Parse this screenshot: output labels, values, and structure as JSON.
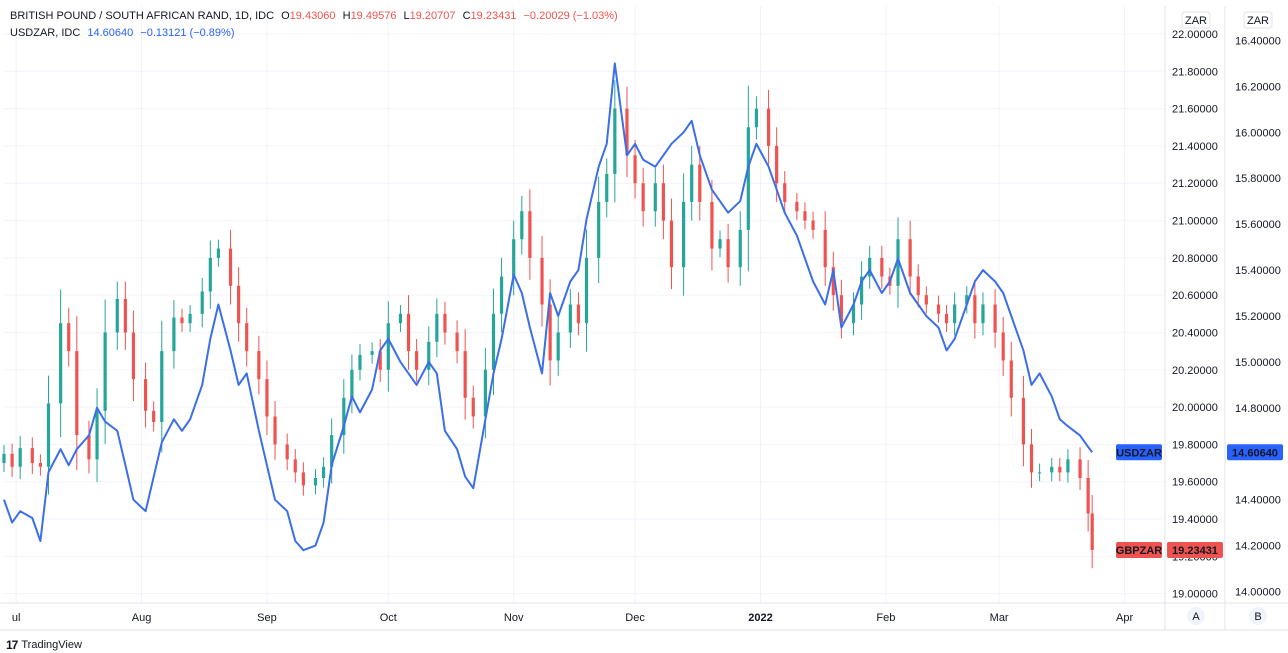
{
  "header": {
    "gbp": {
      "name": "BRITISH POUND / SOUTH AFRICAN RAND, 1D, IDC",
      "o_label": "O",
      "o": "19.43060",
      "h_label": "H",
      "h": "19.49576",
      "l_label": "L",
      "l": "19.20707",
      "c_label": "C",
      "c": "19.23431",
      "change": "−0.20029 (−1.03%)"
    },
    "usd": {
      "name": "USDZAR, IDC",
      "price": "14.60640",
      "change": "−0.13121 (−0.89%)"
    }
  },
  "footer": {
    "brand": "TradingView",
    "brand_icon": "tv-logo-icon"
  },
  "scale_buttons": {
    "left": "A",
    "right": "B"
  },
  "colors": {
    "up": "#26a69a",
    "down": "#ef5350",
    "line": "#3b6ee8",
    "grid": "#f0f3fa",
    "axis_border": "#e0e3eb",
    "text": "#131722"
  },
  "chart_data": {
    "type": "candlestick+line",
    "x_axis": {
      "ticks": [
        {
          "label": "ul",
          "date": "2021-07-01"
        },
        {
          "label": "Aug",
          "date": "2021-08-01"
        },
        {
          "label": "Sep",
          "date": "2021-09-01"
        },
        {
          "label": "Oct",
          "date": "2021-10-01"
        },
        {
          "label": "Nov",
          "date": "2021-11-01"
        },
        {
          "label": "Dec",
          "date": "2021-12-01"
        },
        {
          "label": "2022",
          "date": "2022-01-01"
        },
        {
          "label": "Feb",
          "date": "2022-02-01"
        },
        {
          "label": "Mar",
          "date": "2022-03-01"
        },
        {
          "label": "Apr",
          "date": "2022-04-01"
        }
      ],
      "start_date": "2021-06-28",
      "end_date": "2022-04-11"
    },
    "left_axis": {
      "unit": "ZAR",
      "range": [
        18.95,
        22.15
      ],
      "ticks": [
        "19.00000",
        "19.20000",
        "19.40000",
        "19.60000",
        "19.80000",
        "20.00000",
        "20.20000",
        "20.40000",
        "20.60000",
        "20.80000",
        "21.00000",
        "21.20000",
        "21.40000",
        "21.60000",
        "21.80000",
        "22.00000"
      ]
    },
    "right_axis": {
      "unit": "ZAR",
      "range": [
        13.95,
        16.55
      ],
      "ticks": [
        "14.00000",
        "14.20000",
        "14.40000",
        "14.60000",
        "14.80000",
        "15.00000",
        "15.20000",
        "15.40000",
        "15.60000",
        "15.80000",
        "16.00000",
        "16.20000",
        "16.40000"
      ]
    },
    "series": [
      {
        "name": "GBPZAR",
        "type": "candlestick",
        "axis": "left",
        "last_value": "19.23431",
        "closes": [
          [
            "2021-06-28",
            19.75
          ],
          [
            "2021-06-30",
            19.68
          ],
          [
            "2021-07-02",
            19.78
          ],
          [
            "2021-07-05",
            19.7
          ],
          [
            "2021-07-07",
            19.68
          ],
          [
            "2021-07-09",
            20.02
          ],
          [
            "2021-07-12",
            20.45
          ],
          [
            "2021-07-14",
            20.3
          ],
          [
            "2021-07-16",
            19.85
          ],
          [
            "2021-07-19",
            19.72
          ],
          [
            "2021-07-21",
            19.98
          ],
          [
            "2021-07-23",
            20.4
          ],
          [
            "2021-07-26",
            20.58
          ],
          [
            "2021-07-28",
            20.4
          ],
          [
            "2021-07-30",
            20.15
          ],
          [
            "2021-08-02",
            19.98
          ],
          [
            "2021-08-04",
            19.92
          ],
          [
            "2021-08-06",
            20.3
          ],
          [
            "2021-08-09",
            20.48
          ],
          [
            "2021-08-11",
            20.45
          ],
          [
            "2021-08-13",
            20.5
          ],
          [
            "2021-08-16",
            20.62
          ],
          [
            "2021-08-18",
            20.8
          ],
          [
            "2021-08-20",
            20.85
          ],
          [
            "2021-08-23",
            20.65
          ],
          [
            "2021-08-25",
            20.45
          ],
          [
            "2021-08-27",
            20.3
          ],
          [
            "2021-08-30",
            20.15
          ],
          [
            "2021-09-01",
            19.95
          ],
          [
            "2021-09-03",
            19.8
          ],
          [
            "2021-09-06",
            19.72
          ],
          [
            "2021-09-08",
            19.65
          ],
          [
            "2021-09-10",
            19.58
          ],
          [
            "2021-09-13",
            19.62
          ],
          [
            "2021-09-15",
            19.68
          ],
          [
            "2021-09-17",
            19.85
          ],
          [
            "2021-09-20",
            20.05
          ],
          [
            "2021-09-22",
            20.2
          ],
          [
            "2021-09-24",
            20.28
          ],
          [
            "2021-09-27",
            20.3
          ],
          [
            "2021-09-29",
            20.2
          ],
          [
            "2021-10-01",
            20.45
          ],
          [
            "2021-10-04",
            20.5
          ],
          [
            "2021-10-06",
            20.3
          ],
          [
            "2021-10-08",
            20.2
          ],
          [
            "2021-10-11",
            20.35
          ],
          [
            "2021-10-13",
            20.5
          ],
          [
            "2021-10-15",
            20.4
          ],
          [
            "2021-10-18",
            20.3
          ],
          [
            "2021-10-20",
            20.05
          ],
          [
            "2021-10-22",
            19.95
          ],
          [
            "2021-10-25",
            20.2
          ],
          [
            "2021-10-27",
            20.5
          ],
          [
            "2021-10-29",
            20.7
          ],
          [
            "2021-11-01",
            20.9
          ],
          [
            "2021-11-03",
            21.05
          ],
          [
            "2021-11-05",
            20.8
          ],
          [
            "2021-11-08",
            20.55
          ],
          [
            "2021-11-10",
            20.25
          ],
          [
            "2021-11-12",
            20.4
          ],
          [
            "2021-11-15",
            20.55
          ],
          [
            "2021-11-17",
            20.45
          ],
          [
            "2021-11-19",
            20.8
          ],
          [
            "2021-11-22",
            21.1
          ],
          [
            "2021-11-24",
            21.25
          ],
          [
            "2021-11-26",
            21.6
          ],
          [
            "2021-11-29",
            21.35
          ],
          [
            "2021-12-01",
            21.2
          ],
          [
            "2021-12-03",
            21.05
          ],
          [
            "2021-12-06",
            21.2
          ],
          [
            "2021-12-08",
            21.0
          ],
          [
            "2021-12-10",
            20.75
          ],
          [
            "2021-12-13",
            21.1
          ],
          [
            "2021-12-15",
            21.3
          ],
          [
            "2021-12-17",
            21.1
          ],
          [
            "2021-12-20",
            20.85
          ],
          [
            "2021-12-22",
            20.9
          ],
          [
            "2021-12-24",
            20.75
          ],
          [
            "2021-12-27",
            20.95
          ],
          [
            "2021-12-29",
            21.5
          ],
          [
            "2021-12-31",
            21.6
          ],
          [
            "2022-01-03",
            21.4
          ],
          [
            "2022-01-05",
            21.2
          ],
          [
            "2022-01-07",
            21.1
          ],
          [
            "2022-01-10",
            21.05
          ],
          [
            "2022-01-12",
            21.0
          ],
          [
            "2022-01-14",
            20.95
          ],
          [
            "2022-01-17",
            20.75
          ],
          [
            "2022-01-19",
            20.6
          ],
          [
            "2022-01-21",
            20.45
          ],
          [
            "2022-01-24",
            20.55
          ],
          [
            "2022-01-26",
            20.7
          ],
          [
            "2022-01-28",
            20.8
          ],
          [
            "2022-01-31",
            20.7
          ],
          [
            "2022-02-02",
            20.65
          ],
          [
            "2022-02-04",
            20.9
          ],
          [
            "2022-02-07",
            20.7
          ],
          [
            "2022-02-09",
            20.6
          ],
          [
            "2022-02-11",
            20.55
          ],
          [
            "2022-02-14",
            20.5
          ],
          [
            "2022-02-16",
            20.45
          ],
          [
            "2022-02-18",
            20.55
          ],
          [
            "2022-02-21",
            20.6
          ],
          [
            "2022-02-23",
            20.45
          ],
          [
            "2022-02-25",
            20.55
          ],
          [
            "2022-02-28",
            20.4
          ],
          [
            "2022-03-02",
            20.25
          ],
          [
            "2022-03-04",
            20.05
          ],
          [
            "2022-03-07",
            19.8
          ],
          [
            "2022-03-09",
            19.65
          ],
          [
            "2022-03-11",
            19.65
          ],
          [
            "2022-03-14",
            19.68
          ],
          [
            "2022-03-16",
            19.65
          ],
          [
            "2022-03-18",
            19.72
          ],
          [
            "2022-03-21",
            19.62
          ],
          [
            "2022-03-23",
            19.43
          ],
          [
            "2022-03-24",
            19.23431
          ]
        ]
      },
      {
        "name": "USDZAR",
        "type": "line",
        "axis": "right",
        "last_value": "14.60640",
        "values": [
          [
            "2021-06-28",
            14.4
          ],
          [
            "2021-06-30",
            14.3
          ],
          [
            "2021-07-02",
            14.35
          ],
          [
            "2021-07-05",
            14.32
          ],
          [
            "2021-07-07",
            14.22
          ],
          [
            "2021-07-09",
            14.52
          ],
          [
            "2021-07-12",
            14.62
          ],
          [
            "2021-07-14",
            14.55
          ],
          [
            "2021-07-16",
            14.62
          ],
          [
            "2021-07-19",
            14.68
          ],
          [
            "2021-07-21",
            14.8
          ],
          [
            "2021-07-23",
            14.74
          ],
          [
            "2021-07-26",
            14.7
          ],
          [
            "2021-07-28",
            14.55
          ],
          [
            "2021-07-30",
            14.4
          ],
          [
            "2021-08-02",
            14.35
          ],
          [
            "2021-08-04",
            14.5
          ],
          [
            "2021-08-06",
            14.65
          ],
          [
            "2021-08-09",
            14.75
          ],
          [
            "2021-08-11",
            14.7
          ],
          [
            "2021-08-13",
            14.75
          ],
          [
            "2021-08-16",
            14.9
          ],
          [
            "2021-08-18",
            15.1
          ],
          [
            "2021-08-20",
            15.25
          ],
          [
            "2021-08-23",
            15.05
          ],
          [
            "2021-08-25",
            14.9
          ],
          [
            "2021-08-27",
            14.95
          ],
          [
            "2021-08-30",
            14.7
          ],
          [
            "2021-09-01",
            14.55
          ],
          [
            "2021-09-03",
            14.4
          ],
          [
            "2021-09-06",
            14.35
          ],
          [
            "2021-09-08",
            14.22
          ],
          [
            "2021-09-10",
            14.18
          ],
          [
            "2021-09-13",
            14.2
          ],
          [
            "2021-09-15",
            14.3
          ],
          [
            "2021-09-17",
            14.55
          ],
          [
            "2021-09-20",
            14.72
          ],
          [
            "2021-09-22",
            14.85
          ],
          [
            "2021-09-24",
            14.78
          ],
          [
            "2021-09-27",
            14.88
          ],
          [
            "2021-09-29",
            15.05
          ],
          [
            "2021-10-01",
            15.1
          ],
          [
            "2021-10-04",
            15.0
          ],
          [
            "2021-10-06",
            14.95
          ],
          [
            "2021-10-08",
            14.9
          ],
          [
            "2021-10-11",
            15.0
          ],
          [
            "2021-10-13",
            14.95
          ],
          [
            "2021-10-15",
            14.7
          ],
          [
            "2021-10-18",
            14.62
          ],
          [
            "2021-10-20",
            14.5
          ],
          [
            "2021-10-22",
            14.45
          ],
          [
            "2021-10-25",
            14.75
          ],
          [
            "2021-10-27",
            14.95
          ],
          [
            "2021-10-29",
            15.1
          ],
          [
            "2021-11-01",
            15.38
          ],
          [
            "2021-11-03",
            15.3
          ],
          [
            "2021-11-05",
            15.15
          ],
          [
            "2021-11-08",
            14.95
          ],
          [
            "2021-11-10",
            15.3
          ],
          [
            "2021-11-12",
            15.2
          ],
          [
            "2021-11-15",
            15.35
          ],
          [
            "2021-11-17",
            15.4
          ],
          [
            "2021-11-19",
            15.62
          ],
          [
            "2021-11-22",
            15.85
          ],
          [
            "2021-11-24",
            15.95
          ],
          [
            "2021-11-26",
            16.3
          ],
          [
            "2021-11-29",
            15.9
          ],
          [
            "2021-12-01",
            15.95
          ],
          [
            "2021-12-03",
            15.88
          ],
          [
            "2021-12-06",
            15.85
          ],
          [
            "2021-12-08",
            15.9
          ],
          [
            "2021-12-10",
            15.95
          ],
          [
            "2021-12-13",
            16.0
          ],
          [
            "2021-12-15",
            16.05
          ],
          [
            "2021-12-17",
            15.9
          ],
          [
            "2021-12-20",
            15.75
          ],
          [
            "2021-12-22",
            15.7
          ],
          [
            "2021-12-24",
            15.65
          ],
          [
            "2021-12-27",
            15.7
          ],
          [
            "2021-12-29",
            15.85
          ],
          [
            "2021-12-31",
            15.95
          ],
          [
            "2022-01-03",
            15.85
          ],
          [
            "2022-01-05",
            15.75
          ],
          [
            "2022-01-07",
            15.65
          ],
          [
            "2022-01-10",
            15.55
          ],
          [
            "2022-01-12",
            15.45
          ],
          [
            "2022-01-14",
            15.35
          ],
          [
            "2022-01-17",
            15.25
          ],
          [
            "2022-01-19",
            15.4
          ],
          [
            "2022-01-21",
            15.15
          ],
          [
            "2022-01-24",
            15.25
          ],
          [
            "2022-01-26",
            15.35
          ],
          [
            "2022-01-28",
            15.4
          ],
          [
            "2022-01-31",
            15.3
          ],
          [
            "2022-02-02",
            15.35
          ],
          [
            "2022-02-04",
            15.45
          ],
          [
            "2022-02-07",
            15.3
          ],
          [
            "2022-02-09",
            15.25
          ],
          [
            "2022-02-11",
            15.2
          ],
          [
            "2022-02-14",
            15.15
          ],
          [
            "2022-02-16",
            15.05
          ],
          [
            "2022-02-18",
            15.1
          ],
          [
            "2022-02-21",
            15.25
          ],
          [
            "2022-02-23",
            15.35
          ],
          [
            "2022-02-25",
            15.4
          ],
          [
            "2022-02-28",
            15.35
          ],
          [
            "2022-03-02",
            15.3
          ],
          [
            "2022-03-04",
            15.2
          ],
          [
            "2022-03-07",
            15.05
          ],
          [
            "2022-03-09",
            14.9
          ],
          [
            "2022-03-11",
            14.95
          ],
          [
            "2022-03-14",
            14.85
          ],
          [
            "2022-03-16",
            14.75
          ],
          [
            "2022-03-18",
            14.72
          ],
          [
            "2022-03-21",
            14.68
          ],
          [
            "2022-03-23",
            14.63
          ],
          [
            "2022-03-24",
            14.6064
          ]
        ]
      }
    ],
    "grid": true,
    "legend": "top-left"
  }
}
